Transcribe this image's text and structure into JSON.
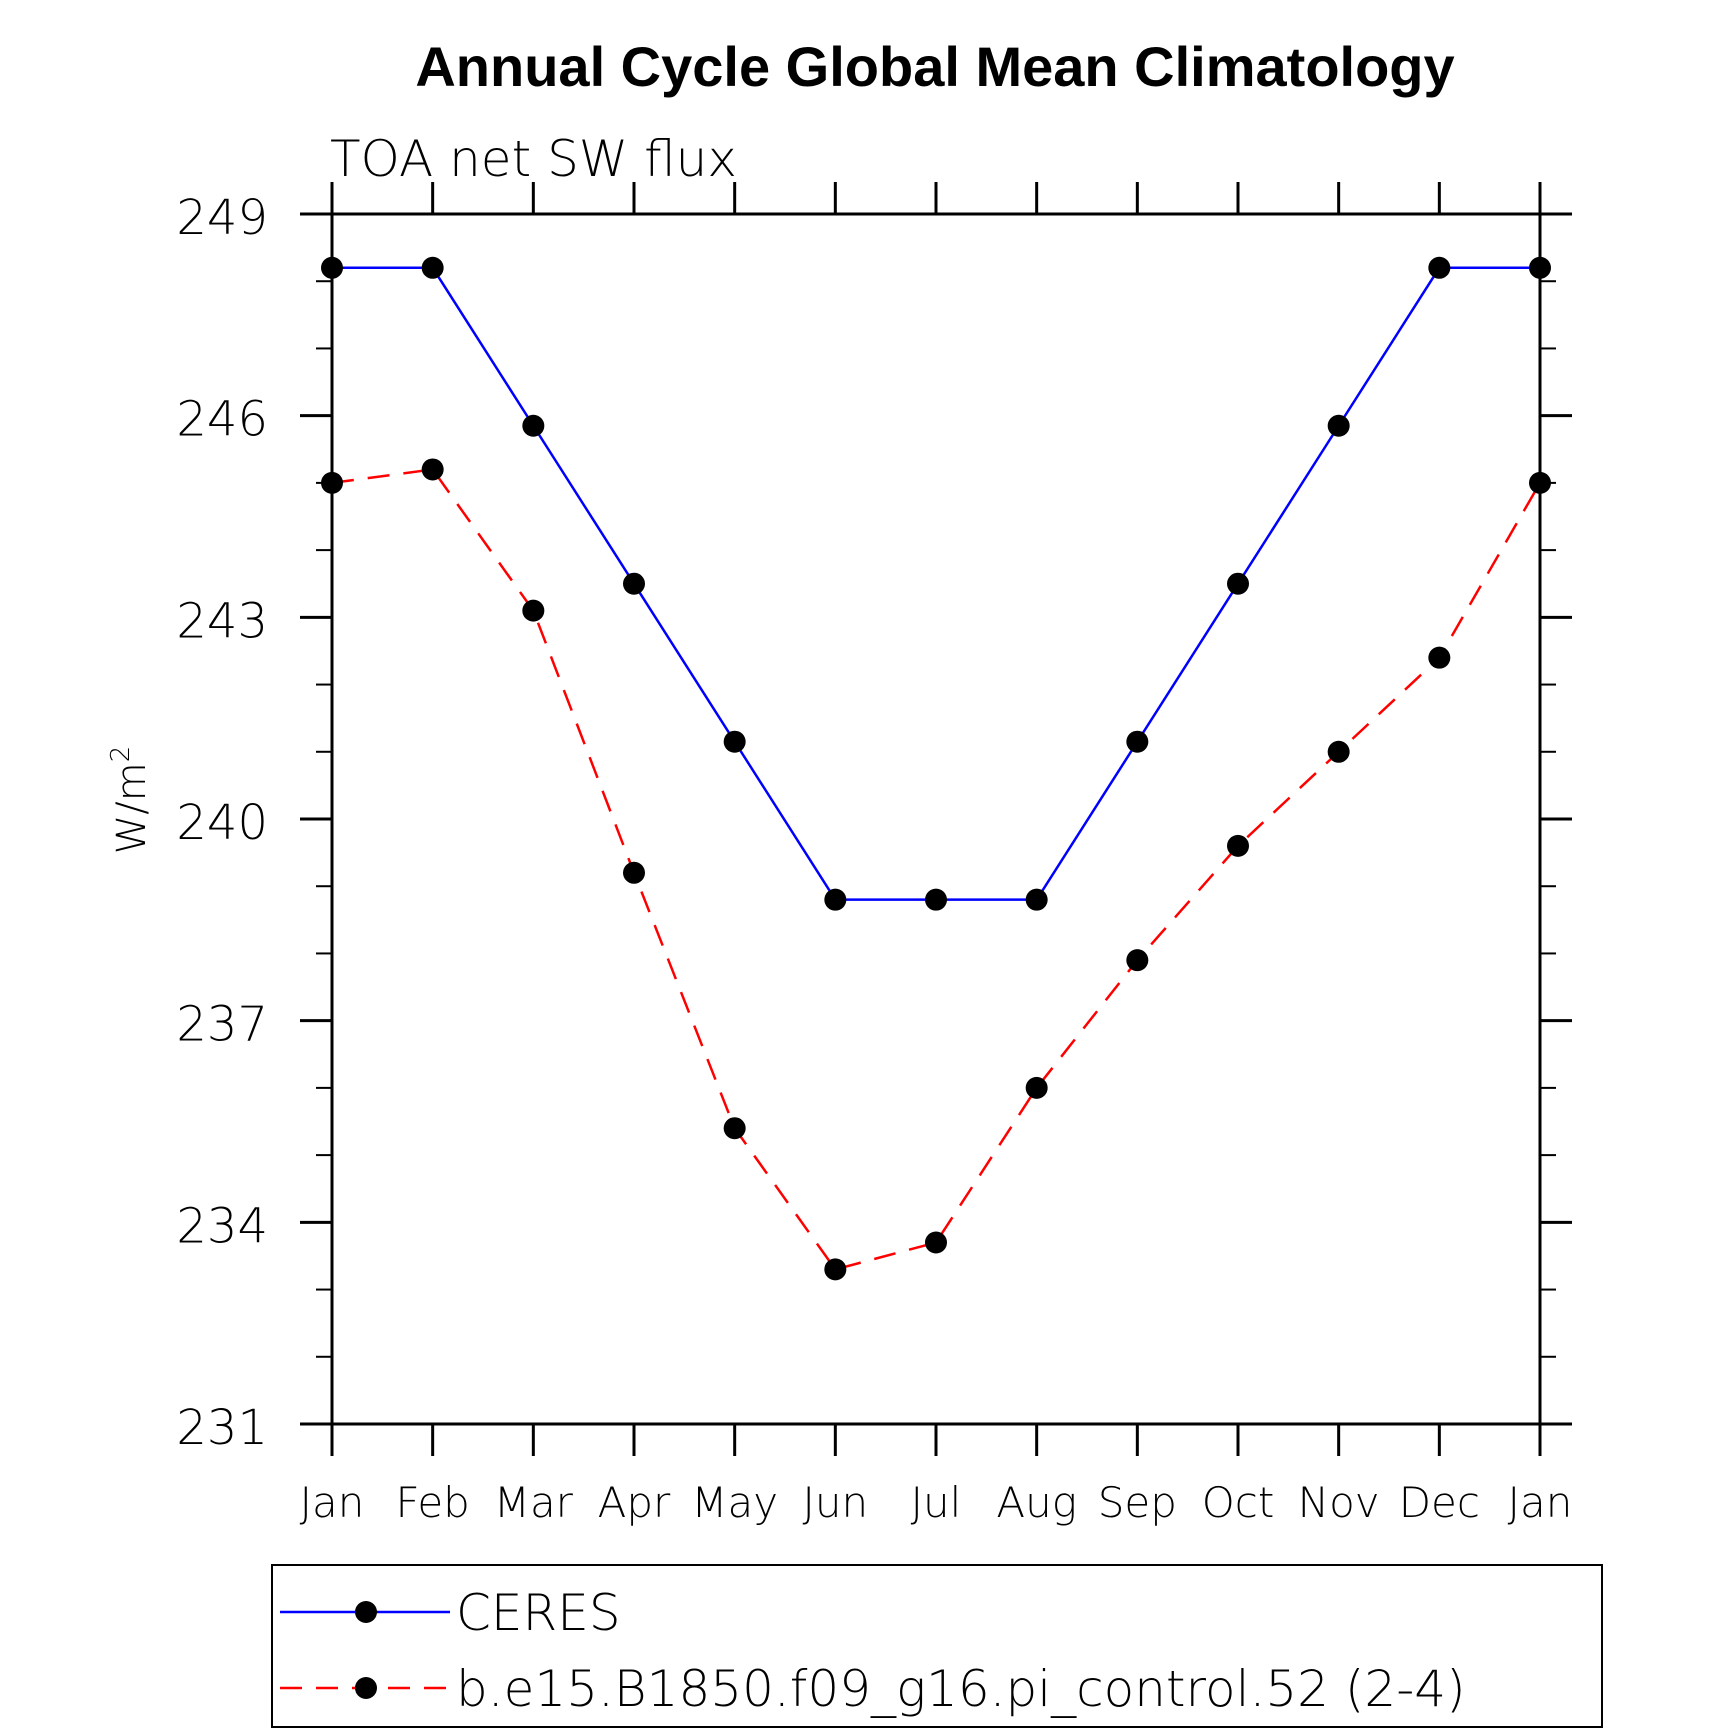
{
  "chart_data": {
    "type": "line",
    "title": "Annual Cycle Global Mean Climatology",
    "subtitle": "TOA net SW flux",
    "ylabel": "W/m",
    "ylabel_superscript": "2",
    "xlabel": "",
    "ylim": [
      231,
      249
    ],
    "yticks": [
      "231",
      "234",
      "237",
      "240",
      "243",
      "246",
      "249"
    ],
    "categories": [
      "Jan",
      "Feb",
      "Mar",
      "Apr",
      "May",
      "Jun",
      "Jul",
      "Aug",
      "Sep",
      "Oct",
      "Nov",
      "Dec",
      "Jan"
    ],
    "grid": false,
    "legend_position": "bottom",
    "series": [
      {
        "name": "CERES",
        "color": "#0000ff",
        "dash": "solid",
        "values": [
          248.2,
          248.2,
          245.85,
          243.5,
          241.15,
          238.8,
          238.8,
          238.8,
          241.15,
          243.5,
          245.85,
          248.2,
          248.2
        ]
      },
      {
        "name": "b.e15.B1850.f09_g16.pi_control.52 (2-4)",
        "color": "#ff0000",
        "dash": "dashed",
        "values": [
          245.0,
          245.2,
          243.1,
          239.2,
          235.4,
          233.3,
          233.7,
          236.0,
          237.9,
          239.6,
          241.0,
          242.4,
          245.0
        ]
      }
    ]
  }
}
